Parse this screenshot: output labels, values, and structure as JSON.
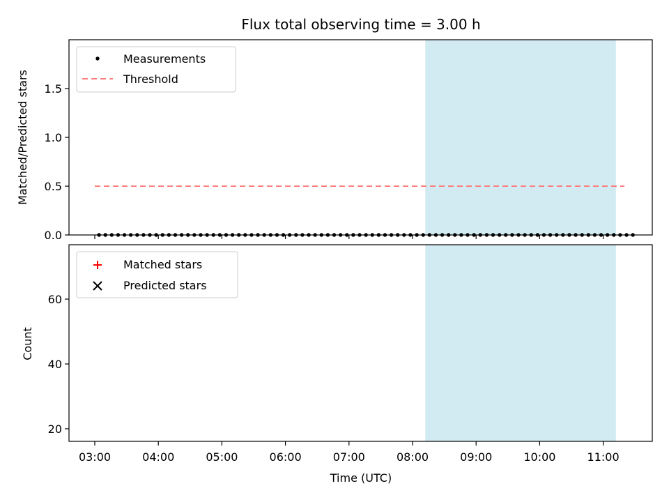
{
  "chart_data": [
    {
      "type": "scatter",
      "title": "Flux total observing time = 3.00 h",
      "xlabel": "",
      "ylabel": "Matched/Predicted stars",
      "ylim": [
        0,
        2.0
      ],
      "yticks": [
        "0.0",
        "0.5",
        "1.0",
        "1.5"
      ],
      "x_axis": "time (UTC), shared with panel below",
      "shaded_interval": {
        "start": "08:12",
        "end": "11:12",
        "color": "#add8e6"
      },
      "legend_position": "upper-left",
      "series": [
        {
          "name": "Measurements",
          "marker": "dot",
          "color": "#000000",
          "times": [
            "03:04",
            "03:10",
            "03:16",
            "03:22",
            "03:28",
            "03:34",
            "03:40",
            "03:46",
            "03:52",
            "03:58",
            "04:04",
            "04:10",
            "04:16",
            "04:22",
            "04:28",
            "04:34",
            "04:40",
            "04:46",
            "04:52",
            "04:58",
            "05:04",
            "05:10",
            "05:16",
            "05:22",
            "05:28",
            "05:34",
            "05:40",
            "05:46",
            "05:52",
            "05:58",
            "06:04",
            "06:10",
            "06:16",
            "06:22",
            "06:28",
            "06:34",
            "06:40",
            "06:46",
            "06:52",
            "06:58",
            "07:04",
            "07:10",
            "07:16",
            "07:22",
            "07:28",
            "07:34",
            "07:40",
            "07:46",
            "07:52",
            "07:58",
            "08:04",
            "08:10",
            "08:16",
            "08:22",
            "08:28",
            "08:34",
            "08:40",
            "08:46",
            "08:52",
            "08:58",
            "09:04",
            "09:10",
            "09:16",
            "09:22",
            "09:28",
            "09:34",
            "09:40",
            "09:46",
            "09:52",
            "09:58",
            "10:04",
            "10:10",
            "10:16",
            "10:22",
            "10:28",
            "10:34",
            "10:40",
            "10:46",
            "10:52",
            "10:58",
            "11:04",
            "11:10",
            "11:16",
            "11:22",
            "11:28"
          ],
          "values": [
            0,
            0,
            0,
            0,
            0,
            0,
            0,
            0,
            0,
            0,
            0,
            0,
            0,
            0,
            0,
            0,
            0,
            0,
            0,
            0,
            0,
            0,
            0,
            0,
            0,
            0,
            0,
            0,
            0,
            0,
            0,
            0,
            0,
            0,
            0,
            0,
            0,
            0,
            0,
            0,
            0,
            0,
            0,
            0,
            0,
            0,
            0,
            0,
            0,
            0,
            0,
            0,
            0,
            0,
            0,
            0,
            0,
            0,
            0,
            0,
            0,
            0,
            0,
            0,
            0,
            0,
            0,
            0,
            0,
            0,
            0,
            0,
            0,
            0,
            0,
            0,
            0,
            0,
            0,
            0,
            0,
            0,
            0,
            0,
            0
          ]
        },
        {
          "name": "Threshold",
          "line_style": "dashed",
          "color": "#ff7f7f",
          "times": [
            "03:00",
            "11:20"
          ],
          "values": [
            0.5,
            0.5
          ]
        }
      ]
    },
    {
      "type": "scatter",
      "title": "",
      "xlabel": "Time (UTC)",
      "ylabel": "Count",
      "ylim": [
        16,
        76
      ],
      "yticks": [
        "20",
        "40",
        "60"
      ],
      "xticks": [
        "03:00",
        "04:00",
        "05:00",
        "06:00",
        "07:00",
        "08:00",
        "09:00",
        "10:00",
        "11:00"
      ],
      "shaded_interval": {
        "start": "08:12",
        "end": "11:12",
        "color": "#add8e6"
      },
      "legend_position": "upper-left",
      "series": [
        {
          "name": "Matched stars",
          "marker": "plus",
          "color": "#ff0000",
          "times": [],
          "values": []
        },
        {
          "name": "Predicted stars",
          "marker": "x",
          "color": "#000000",
          "times": [],
          "values": []
        }
      ]
    }
  ]
}
